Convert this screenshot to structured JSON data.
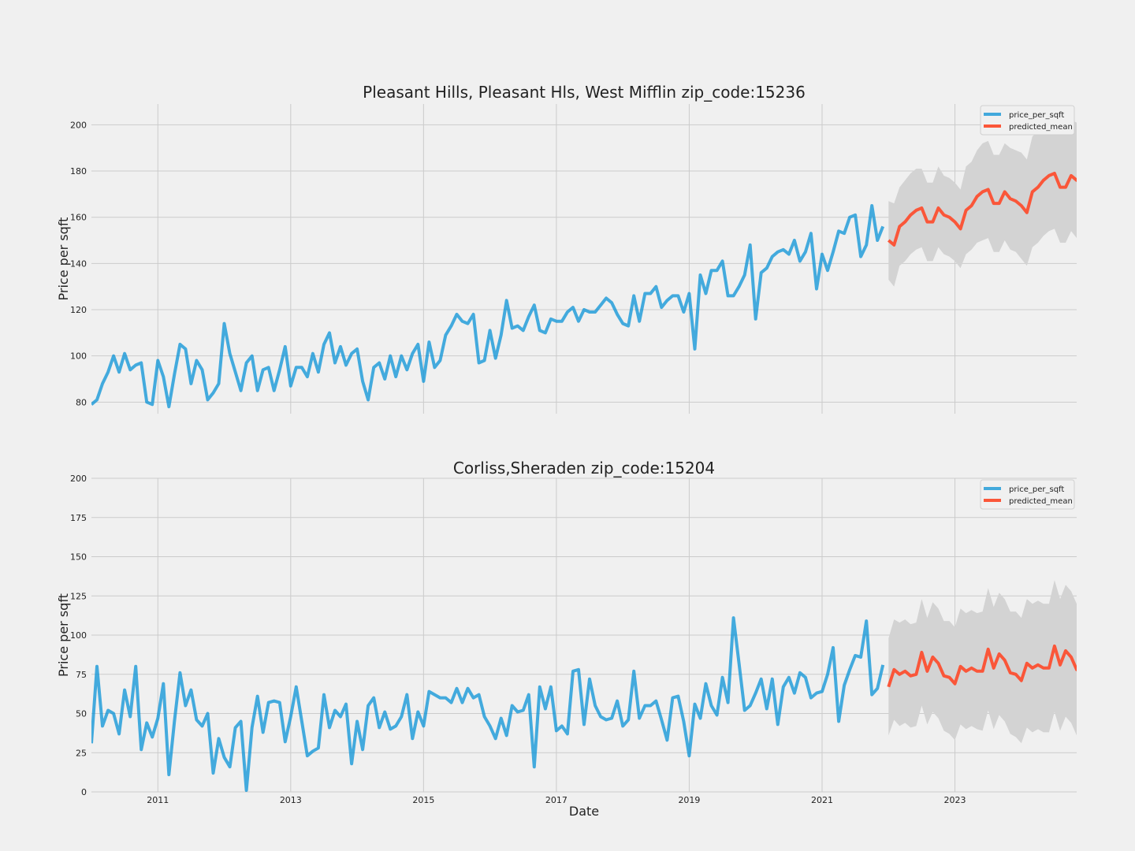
{
  "chart_data": [
    {
      "type": "line",
      "title": "Pleasant Hills, Pleasant Hls, West Mifflin zip_code:15236",
      "ylabel": "Price per sqft",
      "xlabel": "",
      "ylim": [
        75,
        209
      ],
      "yticks": [
        80,
        100,
        120,
        140,
        160,
        180,
        200
      ],
      "grid": true,
      "legend": "top-right",
      "series": [
        {
          "name": "price_per_sqft",
          "color": "#008fd5",
          "x_start": "2010-01",
          "step": "monthly",
          "values": [
            79,
            81,
            88,
            93,
            100,
            93,
            101,
            94,
            96,
            97,
            80,
            79,
            98,
            91,
            78,
            92,
            105,
            103,
            88,
            98,
            94,
            81,
            84,
            88,
            114,
            101,
            93,
            85,
            97,
            100,
            85,
            94,
            95,
            85,
            94,
            104,
            87,
            95,
            95,
            91,
            101,
            93,
            105,
            110,
            97,
            104,
            96,
            101,
            103,
            89,
            81,
            95,
            97,
            90,
            100,
            91,
            100,
            94,
            101,
            105,
            89,
            106,
            95,
            98,
            109,
            113,
            118,
            115,
            114,
            118,
            97,
            98,
            111,
            99,
            109,
            124,
            112,
            113,
            111,
            117,
            122,
            111,
            110,
            116,
            115,
            115,
            119,
            121,
            115,
            120,
            119,
            119,
            122,
            125,
            123,
            118,
            114,
            113,
            126,
            115,
            127,
            127,
            130,
            121,
            124,
            126,
            126,
            119,
            127,
            103,
            135,
            127,
            137,
            137,
            141,
            126,
            126,
            130,
            135,
            148,
            116,
            136,
            138,
            143,
            145,
            146,
            144,
            150,
            141,
            145,
            153,
            129,
            144,
            137,
            145,
            154,
            153,
            160,
            161,
            143,
            148,
            165,
            150,
            156
          ]
        },
        {
          "name": "predicted_mean",
          "color": "#fc4f30",
          "x_start": "2022-01",
          "step": "monthly",
          "values": [
            150,
            148,
            156,
            158,
            161,
            163,
            164,
            158,
            158,
            164,
            161,
            160,
            158,
            155,
            163,
            165,
            169,
            171,
            172,
            166,
            166,
            171,
            168,
            167,
            165,
            162,
            171,
            173,
            176,
            178,
            179,
            173,
            173,
            178,
            176,
            175
          ],
          "ci_lower": [
            133,
            130,
            139,
            141,
            144,
            146,
            147,
            141,
            141,
            147,
            144,
            143,
            141,
            138,
            144,
            146,
            149,
            150,
            151,
            145,
            145,
            150,
            146,
            145,
            142,
            139,
            147,
            149,
            152,
            154,
            155,
            149,
            149,
            154,
            151,
            150
          ],
          "ci_upper": [
            167,
            166,
            173,
            176,
            179,
            181,
            181,
            175,
            175,
            182,
            178,
            177,
            175,
            172,
            182,
            184,
            189,
            192,
            193,
            187,
            187,
            192,
            190,
            189,
            188,
            185,
            195,
            197,
            200,
            202,
            203,
            197,
            197,
            202,
            201,
            200
          ]
        }
      ]
    },
    {
      "type": "line",
      "title": "Corliss,Sheraden zip_code:15204",
      "ylabel": "Price per sqft",
      "xlabel": "Date",
      "ylim": [
        0,
        200
      ],
      "yticks": [
        0,
        25,
        50,
        75,
        100,
        125,
        150,
        175,
        200
      ],
      "xticks": [
        "2011",
        "2013",
        "2015",
        "2017",
        "2019",
        "2021",
        "2023"
      ],
      "grid": true,
      "legend": "top-right",
      "series": [
        {
          "name": "price_per_sqft",
          "color": "#008fd5",
          "x_start": "2010-01",
          "step": "monthly",
          "values": [
            31,
            80,
            42,
            52,
            50,
            37,
            65,
            48,
            80,
            27,
            44,
            35,
            47,
            69,
            11,
            45,
            76,
            55,
            65,
            46,
            42,
            50,
            12,
            34,
            22,
            16,
            41,
            45,
            1,
            41,
            61,
            38,
            57,
            58,
            57,
            32,
            48,
            67,
            45,
            23,
            26,
            28,
            62,
            41,
            52,
            48,
            56,
            18,
            45,
            27,
            55,
            60,
            41,
            51,
            40,
            42,
            48,
            62,
            34,
            51,
            42,
            64,
            62,
            60,
            60,
            57,
            66,
            57,
            66,
            60,
            62,
            48,
            42,
            34,
            47,
            36,
            55,
            51,
            52,
            62,
            16,
            67,
            53,
            67,
            39,
            42,
            37,
            77,
            78,
            43,
            72,
            55,
            48,
            46,
            47,
            58,
            42,
            46,
            77,
            47,
            55,
            55,
            58,
            46,
            33,
            60,
            61,
            45,
            23,
            56,
            47,
            69,
            55,
            49,
            73,
            57,
            111,
            82,
            52,
            55,
            63,
            72,
            53,
            72,
            43,
            67,
            73,
            63,
            76,
            73,
            60,
            63,
            64,
            75,
            92,
            45,
            68,
            78,
            87,
            86,
            109,
            62,
            66,
            81
          ]
        },
        {
          "name": "predicted_mean",
          "color": "#fc4f30",
          "x_start": "2022-01",
          "step": "monthly",
          "values": [
            67,
            78,
            75,
            77,
            74,
            75,
            89,
            77,
            86,
            82,
            74,
            73,
            69,
            80,
            77,
            79,
            77,
            77,
            91,
            79,
            88,
            84,
            76,
            75,
            71,
            82,
            79,
            81,
            79,
            79,
            93,
            81,
            90,
            86,
            78,
            77
          ],
          "ci_lower": [
            36,
            46,
            42,
            44,
            41,
            42,
            55,
            43,
            51,
            47,
            39,
            37,
            33,
            43,
            40,
            42,
            40,
            39,
            52,
            40,
            49,
            45,
            37,
            35,
            31,
            41,
            38,
            40,
            38,
            38,
            51,
            39,
            48,
            44,
            36,
            35
          ],
          "ci_upper": [
            98,
            110,
            108,
            110,
            107,
            108,
            123,
            111,
            121,
            117,
            109,
            109,
            105,
            117,
            114,
            116,
            114,
            115,
            130,
            118,
            127,
            123,
            115,
            115,
            111,
            123,
            120,
            122,
            120,
            120,
            135,
            123,
            132,
            128,
            120,
            119
          ]
        }
      ]
    }
  ]
}
